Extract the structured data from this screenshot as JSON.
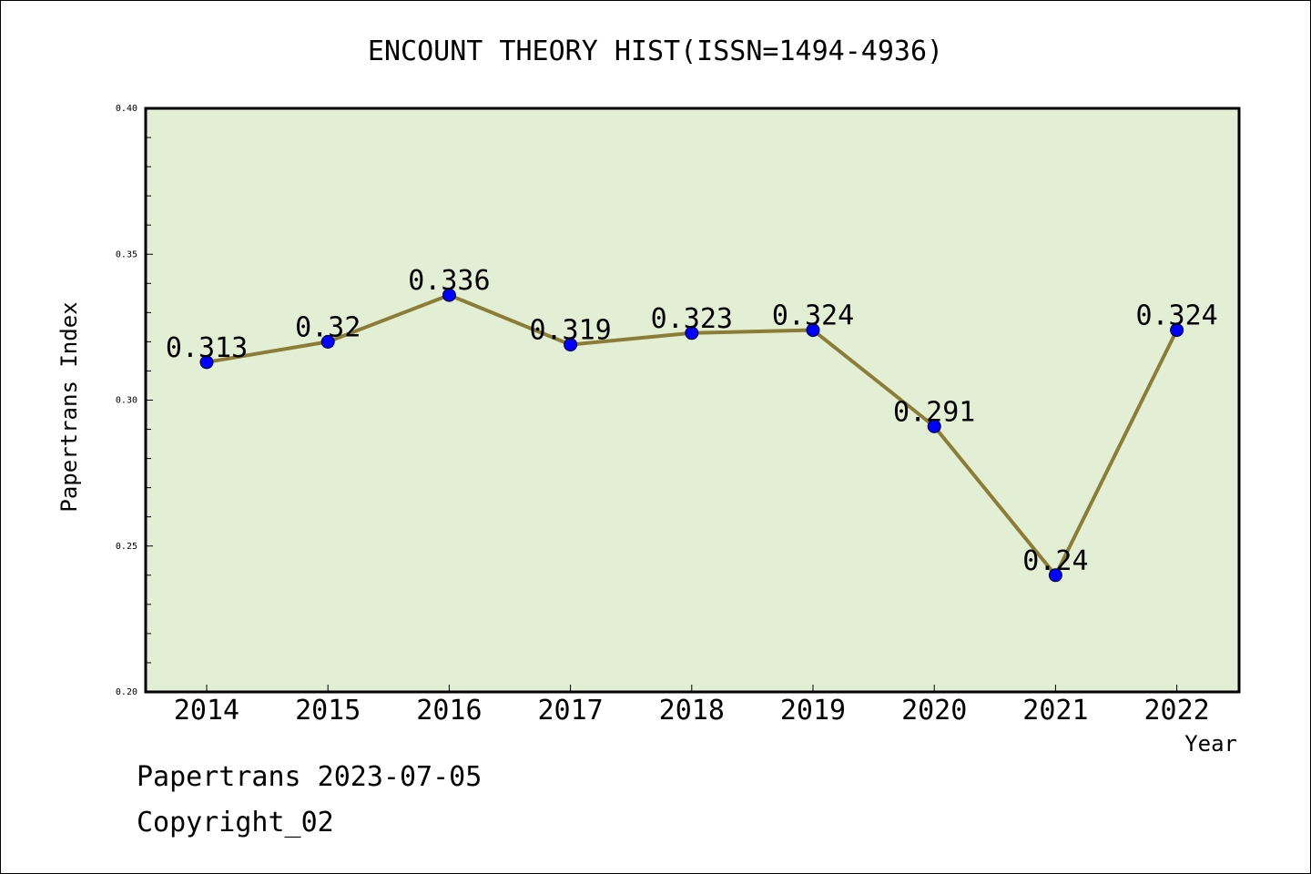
{
  "chart_data": {
    "type": "line",
    "title": "ENCOUNT THEORY HIST(ISSN=1494-4936)",
    "xlabel": "Year",
    "ylabel": "Papertrans Index",
    "categories": [
      "2014",
      "2015",
      "2016",
      "2017",
      "2018",
      "2019",
      "2020",
      "2021",
      "2022"
    ],
    "series": [
      {
        "values": [
          0.313,
          0.32,
          0.336,
          0.319,
          0.323,
          0.324,
          0.291,
          0.24,
          0.324
        ]
      }
    ],
    "data_labels": [
      "0.313",
      "0.32",
      "0.336",
      "0.319",
      "0.323",
      "0.324",
      "0.291",
      "0.24",
      "0.324"
    ],
    "ylim": [
      0.2,
      0.4
    ],
    "yticks": [
      "0.20",
      "0.25",
      "0.30",
      "0.35",
      "0.40"
    ],
    "legend": "none",
    "grid": false,
    "colors": {
      "plot_background": "#e2efd5",
      "line": "#8b7d35",
      "marker": "#0000ff"
    }
  },
  "footer": {
    "line1": "Papertrans 2023-07-05",
    "line2": "Copyright_02"
  }
}
